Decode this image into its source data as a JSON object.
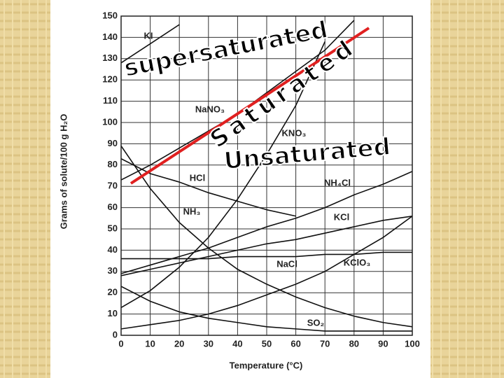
{
  "chart_data": {
    "type": "line",
    "xlabel": "Temperature (°C)",
    "ylabel": "Grams of solute/100 g H₂O",
    "x": [
      0,
      10,
      20,
      30,
      40,
      50,
      60,
      70,
      80,
      90,
      100
    ],
    "xlim": [
      0,
      100
    ],
    "xticks": [
      0,
      10,
      20,
      30,
      40,
      50,
      60,
      70,
      80,
      90,
      100
    ],
    "ylim": [
      0,
      150
    ],
    "yticks": [
      0,
      10,
      20,
      30,
      40,
      50,
      60,
      70,
      80,
      90,
      100,
      110,
      120,
      130,
      140,
      150
    ],
    "grid": true,
    "series": [
      {
        "name": "KI",
        "color": "#111111",
        "values": [
          128,
          137,
          146,
          null,
          null,
          null,
          null,
          null,
          null,
          null,
          null
        ]
      },
      {
        "name": "NaNO₃",
        "color": "#111111",
        "values": [
          73,
          80,
          88,
          96,
          104,
          114,
          124,
          134,
          148,
          null,
          null
        ]
      },
      {
        "name": "KNO₃",
        "color": "#111111",
        "values": [
          13,
          21,
          32,
          46,
          64,
          85,
          108,
          138,
          null,
          null,
          null
        ]
      },
      {
        "name": "HCl",
        "color": "#111111",
        "values": [
          83,
          76,
          72,
          67,
          63,
          59,
          56,
          null,
          null,
          null,
          null
        ]
      },
      {
        "name": "NH₄Cl",
        "color": "#111111",
        "values": [
          29,
          33,
          37,
          41,
          46,
          51,
          55,
          60,
          66,
          71,
          77
        ]
      },
      {
        "name": "NH₃",
        "color": "#111111",
        "values": [
          89,
          69,
          53,
          41,
          31,
          24,
          18,
          13,
          9,
          6,
          4
        ]
      },
      {
        "name": "KCl",
        "color": "#111111",
        "values": [
          28,
          31,
          34,
          37,
          40,
          43,
          45,
          48,
          51,
          54,
          56
        ]
      },
      {
        "name": "NaCl",
        "color": "#111111",
        "values": [
          36,
          36,
          36,
          36,
          37,
          37,
          37,
          38,
          38,
          39,
          39
        ]
      },
      {
        "name": "KClO₃",
        "color": "#111111",
        "values": [
          3,
          5,
          7,
          10,
          14,
          19,
          24,
          30,
          38,
          46,
          56
        ]
      },
      {
        "name": "SO₂",
        "color": "#111111",
        "values": [
          23,
          16,
          11,
          8,
          6,
          4,
          3,
          2,
          2,
          2,
          2
        ]
      }
    ],
    "annotations": [
      "supersaturated",
      "Saturated",
      "Unsaturated"
    ]
  }
}
